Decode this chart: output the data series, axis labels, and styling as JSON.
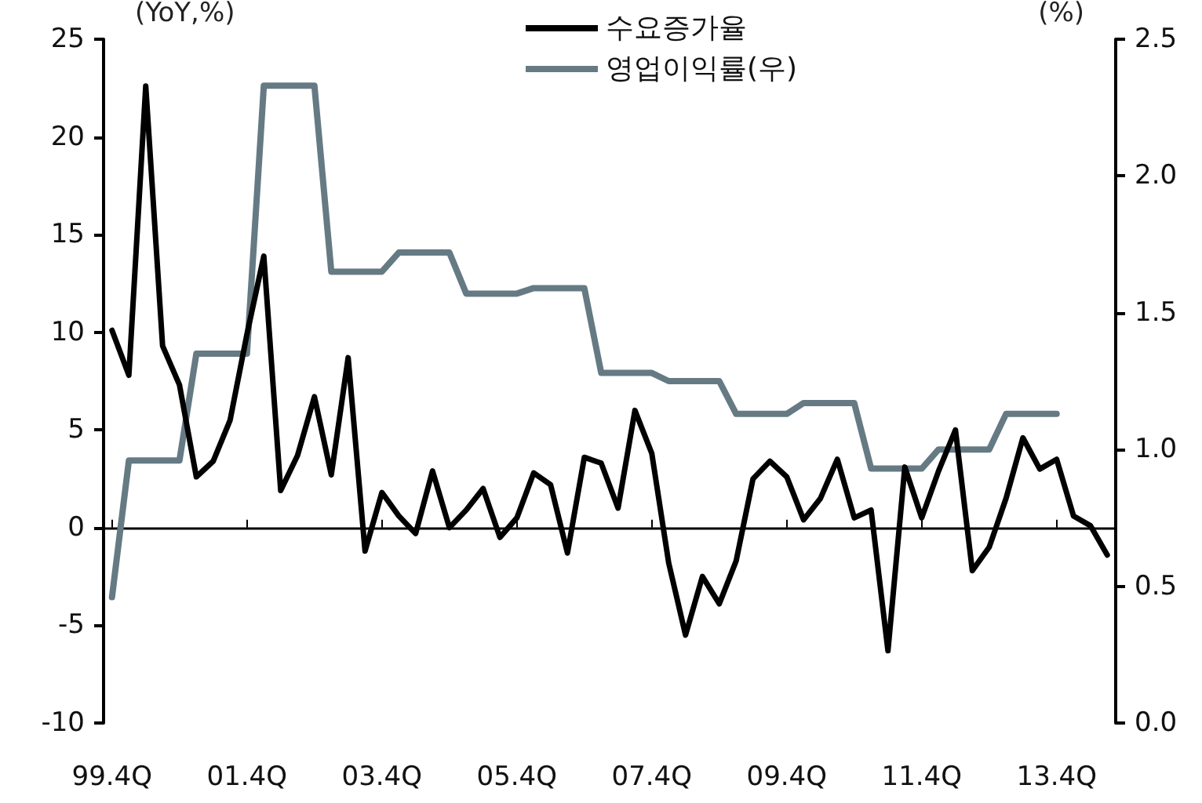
{
  "chart_data": {
    "type": "line",
    "ylabel": "(YoY,%)",
    "y2label": "(%)",
    "categories": [
      "99.4Q",
      null,
      null,
      null,
      null,
      null,
      null,
      null,
      "01.4Q",
      null,
      null,
      null,
      null,
      null,
      null,
      null,
      "03.4Q",
      null,
      null,
      null,
      null,
      null,
      null,
      null,
      "05.4Q",
      null,
      null,
      null,
      null,
      null,
      null,
      null,
      "07.4Q",
      null,
      null,
      null,
      null,
      null,
      null,
      null,
      "09.4Q",
      null,
      null,
      null,
      null,
      null,
      null,
      null,
      "11.4Q",
      null,
      null,
      null,
      null,
      null,
      null,
      null,
      "13.4Q",
      null,
      null,
      null
    ],
    "series": [
      {
        "name": "수요증가율",
        "color": "#000000",
        "values": [
          10.1,
          7.8,
          22.6,
          9.3,
          7.3,
          2.6,
          3.4,
          5.5,
          9.9,
          13.9,
          1.9,
          3.7,
          6.7,
          2.7,
          8.7,
          -1.2,
          1.8,
          0.6,
          -0.3,
          2.9,
          0.0,
          0.9,
          2.0,
          -0.5,
          0.5,
          2.8,
          2.2,
          -1.3,
          3.6,
          3.3,
          1.0,
          6.0,
          3.8,
          -1.8,
          -5.5,
          -2.5,
          -3.9,
          -1.7,
          2.5,
          3.4,
          2.6,
          0.4,
          1.5,
          3.5,
          0.5,
          0.9,
          -6.3,
          3.1,
          0.5,
          2.9,
          5.0,
          -2.2,
          -1.0,
          1.5,
          4.6,
          3.0,
          3.5,
          0.6,
          0.1,
          -1.4
        ]
      },
      {
        "name": "영업이익률(우)",
        "color": "#667a84",
        "axis": "y2",
        "values": [
          0.46,
          0.96,
          0.96,
          0.96,
          0.96,
          1.35,
          1.35,
          1.35,
          1.35,
          2.33,
          2.33,
          2.33,
          2.33,
          1.65,
          1.65,
          1.65,
          1.65,
          1.72,
          1.72,
          1.72,
          1.72,
          1.57,
          1.57,
          1.57,
          1.57,
          1.59,
          1.59,
          1.59,
          1.59,
          1.28,
          1.28,
          1.28,
          1.28,
          1.25,
          1.25,
          1.25,
          1.25,
          1.13,
          1.13,
          1.13,
          1.13,
          1.17,
          1.17,
          1.17,
          1.17,
          0.93,
          0.93,
          0.93,
          0.93,
          1.0,
          1.0,
          1.0,
          1.0,
          1.13,
          1.13,
          1.13,
          1.13,
          null,
          null,
          null
        ]
      }
    ],
    "ylim": [
      -10,
      25
    ],
    "yticks": [
      -10,
      -5,
      0,
      5,
      10,
      15,
      20,
      25
    ],
    "y2lim": [
      0,
      2.5
    ],
    "y2ticks": [
      {
        "value": 0,
        "label": "0.0"
      },
      {
        "value": 0.5,
        "label": "0.5"
      },
      {
        "value": 1,
        "label": "1.0"
      },
      {
        "value": 1.5,
        "label": "1.5"
      },
      {
        "value": 2,
        "label": "2.0"
      },
      {
        "value": 2.5,
        "label": "2.5"
      }
    ],
    "legend": "top",
    "marker": "none",
    "line_style": "solid"
  }
}
